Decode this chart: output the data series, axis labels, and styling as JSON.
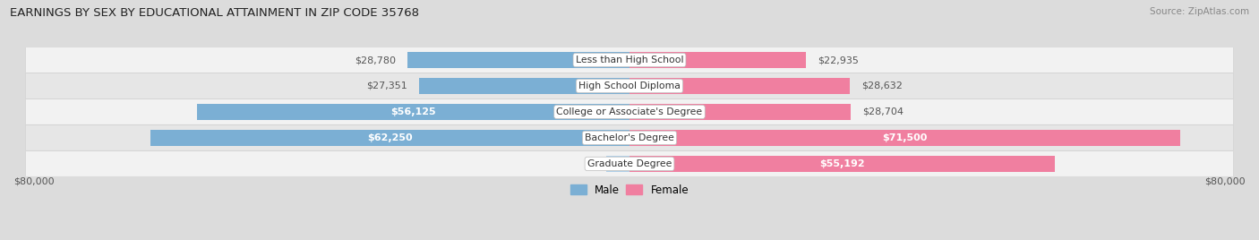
{
  "title": "EARNINGS BY SEX BY EDUCATIONAL ATTAINMENT IN ZIP CODE 35768",
  "source": "Source: ZipAtlas.com",
  "categories": [
    "Less than High School",
    "High School Diploma",
    "College or Associate's Degree",
    "Bachelor's Degree",
    "Graduate Degree"
  ],
  "male_values": [
    28780,
    27351,
    56125,
    62250,
    0
  ],
  "female_values": [
    22935,
    28632,
    28704,
    71500,
    55192
  ],
  "male_color": "#7bafd4",
  "female_color": "#f07fa0",
  "male_color_graduate": "#b0cfe8",
  "max_value": 80000,
  "bar_height": 0.62,
  "row_bg_even": "#f2f2f2",
  "row_bg_odd": "#e6e6e6",
  "label_dark": "#555555",
  "background": "#dcdcdc",
  "inside_label_threshold": 35000,
  "outside_label_threshold": 10000
}
